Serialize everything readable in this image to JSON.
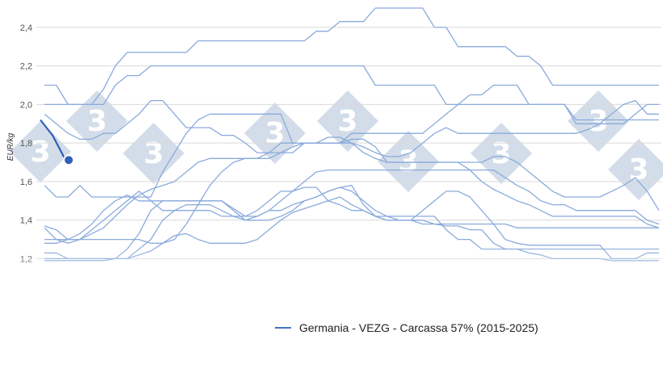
{
  "chart_data": {
    "type": "line",
    "ylabel": "EUR/kg",
    "ylim": [
      1.16,
      2.5
    ],
    "yticks": [
      "1,2",
      "1,4",
      "1,6",
      "1,8",
      "2,0",
      "2,2",
      "2,4"
    ],
    "ytick_values": [
      1.2,
      1.4,
      1.6,
      1.8,
      2.0,
      2.2,
      2.4
    ],
    "x_weeks": 53,
    "grid": true,
    "legend": {
      "label": "Germania - VEZG - Carcassa 57% (2015-2025)",
      "position": "bottom"
    },
    "colors": {
      "history": "#8aaadc",
      "current": "#2f5fb8",
      "legend": "#4472c4",
      "grid": "#d9d9d9"
    },
    "series": [
      {
        "values": [
          2.1,
          2.1,
          2.0,
          2.0,
          2.0,
          2.08,
          2.2,
          2.27,
          2.27,
          2.27,
          2.27,
          2.27,
          2.27,
          2.33,
          2.33,
          2.33,
          2.33,
          2.33,
          2.33,
          2.33,
          2.33,
          2.33,
          2.33,
          2.38,
          2.38,
          2.43,
          2.43,
          2.43,
          2.5,
          2.5,
          2.5,
          2.5,
          2.5,
          2.4,
          2.4,
          2.3,
          2.3,
          2.3,
          2.3,
          2.3,
          2.25,
          2.25,
          2.2,
          2.1,
          2.1,
          2.1,
          2.1,
          2.1,
          2.1,
          2.1,
          2.1,
          2.1,
          2.1
        ]
      },
      {
        "values": [
          2.0,
          2.0,
          2.0,
          2.0,
          2.0,
          2.0,
          2.1,
          2.15,
          2.15,
          2.2,
          2.2,
          2.2,
          2.2,
          2.2,
          2.2,
          2.2,
          2.2,
          2.2,
          2.2,
          2.2,
          2.2,
          2.2,
          2.2,
          2.2,
          2.2,
          2.2,
          2.2,
          2.2,
          2.1,
          2.1,
          2.1,
          2.1,
          2.1,
          2.1,
          2.0,
          2.0,
          2.0,
          2.0,
          2.0,
          2.0,
          2.0,
          2.0,
          2.0,
          2.0,
          2.0,
          1.9,
          1.9,
          1.9,
          1.9,
          1.9,
          1.95,
          2.0,
          2.0
        ]
      },
      {
        "values": [
          1.95,
          1.9,
          1.85,
          1.82,
          1.82,
          1.85,
          1.85,
          1.9,
          1.95,
          2.02,
          2.02,
          1.95,
          1.88,
          1.88,
          1.88,
          1.84,
          1.84,
          1.8,
          1.75,
          1.75,
          1.8,
          1.8,
          1.8,
          1.8,
          1.83,
          1.83,
          1.8,
          1.78,
          1.75,
          1.73,
          1.73,
          1.75,
          1.8,
          1.85,
          1.88,
          1.85,
          1.85,
          1.85,
          1.85,
          1.85,
          1.85,
          1.85,
          1.85,
          1.85,
          1.85,
          1.85,
          1.87,
          1.9,
          1.95,
          2.0,
          2.02,
          1.95,
          1.95
        ]
      },
      {
        "values": [
          1.58,
          1.52,
          1.52,
          1.58,
          1.52,
          1.52,
          1.52,
          1.52,
          1.52,
          1.52,
          1.65,
          1.75,
          1.85,
          1.92,
          1.95,
          1.95,
          1.95,
          1.95,
          1.95,
          1.95,
          1.95,
          1.8,
          1.8,
          1.8,
          1.8,
          1.8,
          1.85,
          1.85,
          1.85,
          1.85,
          1.85,
          1.85,
          1.85,
          1.9,
          1.95,
          2.0,
          2.05,
          2.05,
          2.1,
          2.1,
          2.1,
          2.0,
          2.0,
          2.0,
          2.0,
          1.92,
          1.92,
          1.92,
          1.92,
          1.92,
          1.92,
          1.92,
          1.92
        ]
      },
      {
        "values": [
          1.37,
          1.35,
          1.3,
          1.3,
          1.3,
          1.3,
          1.3,
          1.3,
          1.3,
          1.28,
          1.28,
          1.3,
          1.38,
          1.48,
          1.58,
          1.65,
          1.7,
          1.72,
          1.72,
          1.72,
          1.75,
          1.78,
          1.8,
          1.8,
          1.8,
          1.8,
          1.8,
          1.75,
          1.72,
          1.7,
          1.7,
          1.7,
          1.7,
          1.7,
          1.7,
          1.7,
          1.7,
          1.7,
          1.73,
          1.73,
          1.7,
          1.65,
          1.6,
          1.55,
          1.52,
          1.52,
          1.52,
          1.52,
          1.55,
          1.58,
          1.62,
          1.55,
          1.45
        ]
      },
      {
        "values": [
          1.36,
          1.3,
          1.3,
          1.3,
          1.33,
          1.36,
          1.42,
          1.48,
          1.53,
          1.56,
          1.58,
          1.6,
          1.65,
          1.7,
          1.72,
          1.72,
          1.72,
          1.72,
          1.72,
          1.75,
          1.75,
          1.75,
          1.8,
          1.8,
          1.8,
          1.8,
          1.82,
          1.82,
          1.78,
          1.7,
          1.7,
          1.7,
          1.7,
          1.7,
          1.7,
          1.7,
          1.66,
          1.66,
          1.66,
          1.62,
          1.58,
          1.55,
          1.5,
          1.48,
          1.48,
          1.45,
          1.45,
          1.45,
          1.45,
          1.45,
          1.45,
          1.4,
          1.38
        ]
      },
      {
        "values": [
          1.28,
          1.28,
          1.3,
          1.33,
          1.38,
          1.45,
          1.5,
          1.53,
          1.5,
          1.5,
          1.5,
          1.5,
          1.5,
          1.5,
          1.5,
          1.5,
          1.46,
          1.42,
          1.42,
          1.45,
          1.5,
          1.55,
          1.6,
          1.65,
          1.66,
          1.66,
          1.66,
          1.66,
          1.66,
          1.66,
          1.66,
          1.66,
          1.66,
          1.66,
          1.66,
          1.66,
          1.66,
          1.6,
          1.56,
          1.53,
          1.5,
          1.48,
          1.45,
          1.42,
          1.42,
          1.42,
          1.42,
          1.42,
          1.42,
          1.42,
          1.42,
          1.38,
          1.36
        ]
      },
      {
        "values": [
          1.3,
          1.3,
          1.28,
          1.3,
          1.35,
          1.4,
          1.45,
          1.5,
          1.55,
          1.5,
          1.45,
          1.45,
          1.45,
          1.45,
          1.45,
          1.42,
          1.42,
          1.42,
          1.45,
          1.5,
          1.55,
          1.55,
          1.57,
          1.57,
          1.5,
          1.48,
          1.45,
          1.45,
          1.42,
          1.4,
          1.4,
          1.4,
          1.4,
          1.38,
          1.38,
          1.38,
          1.38,
          1.38,
          1.38,
          1.38,
          1.36,
          1.36,
          1.36,
          1.36,
          1.36,
          1.36,
          1.36,
          1.36,
          1.36,
          1.36,
          1.36,
          1.36,
          1.36
        ]
      },
      {
        "values": [
          1.23,
          1.23,
          1.2,
          1.2,
          1.2,
          1.2,
          1.2,
          1.25,
          1.33,
          1.45,
          1.5,
          1.5,
          1.5,
          1.5,
          1.5,
          1.5,
          1.45,
          1.4,
          1.4,
          1.4,
          1.42,
          1.45,
          1.5,
          1.52,
          1.55,
          1.57,
          1.55,
          1.5,
          1.45,
          1.42,
          1.42,
          1.42,
          1.42,
          1.42,
          1.35,
          1.3,
          1.3,
          1.25,
          1.25,
          1.25,
          1.25,
          1.25,
          1.25,
          1.25,
          1.25,
          1.25,
          1.25,
          1.25,
          1.25,
          1.25,
          1.25,
          1.25,
          1.25
        ]
      },
      {
        "values": [
          1.2,
          1.2,
          1.2,
          1.2,
          1.2,
          1.2,
          1.2,
          1.2,
          1.25,
          1.3,
          1.4,
          1.45,
          1.48,
          1.48,
          1.48,
          1.45,
          1.42,
          1.4,
          1.42,
          1.45,
          1.45,
          1.48,
          1.5,
          1.52,
          1.55,
          1.57,
          1.58,
          1.48,
          1.42,
          1.4,
          1.4,
          1.4,
          1.45,
          1.5,
          1.55,
          1.55,
          1.52,
          1.45,
          1.38,
          1.3,
          1.28,
          1.27,
          1.27,
          1.27,
          1.27,
          1.27,
          1.27,
          1.27,
          1.2,
          1.2,
          1.2,
          1.23,
          1.23
        ]
      },
      {
        "values": [
          1.19,
          1.19,
          1.19,
          1.19,
          1.19,
          1.19,
          1.2,
          1.2,
          1.22,
          1.24,
          1.28,
          1.32,
          1.33,
          1.3,
          1.28,
          1.28,
          1.28,
          1.28,
          1.3,
          1.35,
          1.4,
          1.44,
          1.46,
          1.48,
          1.5,
          1.52,
          1.48,
          1.45,
          1.42,
          1.42,
          1.4,
          1.4,
          1.38,
          1.38,
          1.37,
          1.37,
          1.35,
          1.35,
          1.28,
          1.25,
          1.25,
          1.23,
          1.22,
          1.2,
          1.2,
          1.2,
          1.2,
          1.2,
          1.19,
          1.19,
          1.19,
          1.19,
          1.19
        ]
      }
    ],
    "current_year": {
      "values": [
        1.92,
        1.84,
        1.72
      ]
    }
  }
}
